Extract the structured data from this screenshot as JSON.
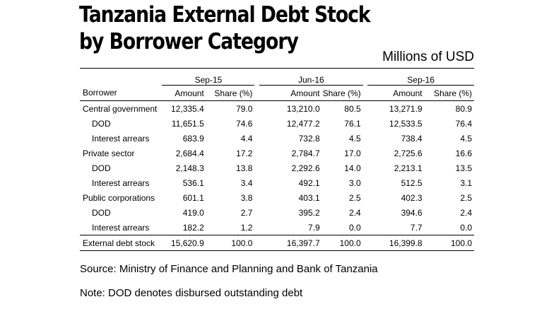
{
  "title_line1": "Tanzania External Debt Stock",
  "title_line2": "by Borrower Category",
  "units": "Millions of USD",
  "periods": [
    "Sep-15",
    "Jun-16",
    "Sep-16"
  ],
  "col_borrower": "Borrower",
  "col_amount": "Amount",
  "col_share": "Share (%)",
  "rows": [
    {
      "label": "Central government",
      "values": [
        "12,335.4",
        "79.0",
        "13,210.0",
        "80.5",
        "13,271.9",
        "80.9"
      ]
    },
    {
      "label": "DOD",
      "values": [
        "11,651.5",
        "74.6",
        "12,477.2",
        "76.1",
        "12,533.5",
        "76.4"
      ]
    },
    {
      "label": "Interest arrears",
      "values": [
        "683.9",
        "4.4",
        "732.8",
        "4.5",
        "738.4",
        "4.5"
      ]
    },
    {
      "label": "Private sector",
      "values": [
        "2,684.4",
        "17.2",
        "2,784.7",
        "17.0",
        "2,725.6",
        "16.6"
      ]
    },
    {
      "label": "DOD",
      "values": [
        "2,148.3",
        "13.8",
        "2,292.6",
        "14.0",
        "2,213.1",
        "13.5"
      ]
    },
    {
      "label": "Interest arrears",
      "values": [
        "536.1",
        "3.4",
        "492.1",
        "3.0",
        "512.5",
        "3.1"
      ]
    },
    {
      "label": "Public corporations",
      "values": [
        "601.1",
        "3.8",
        "403.1",
        "2.5",
        "402.3",
        "2.5"
      ]
    },
    {
      "label": "DOD",
      "values": [
        "419.0",
        "2.7",
        "395.2",
        "2.4",
        "394.6",
        "2.4"
      ]
    },
    {
      "label": "Interest arrears",
      "values": [
        "182.2",
        "1.2",
        "7.9",
        "0.0",
        "7.7",
        "0.0"
      ]
    }
  ],
  "total": {
    "label": "External debt stock",
    "values": [
      "15,620.9",
      "100.0",
      "16,397.7",
      "100.0",
      "16,399.8",
      "100.0"
    ]
  },
  "source": "Source: Ministry of Finance and Planning and Bank of Tanzania",
  "note": "Note: DOD denotes disbursed outstanding debt"
}
